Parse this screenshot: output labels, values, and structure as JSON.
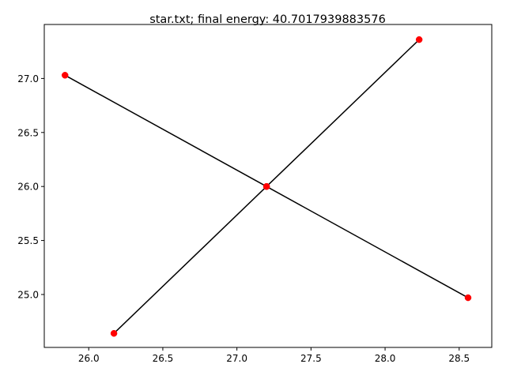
{
  "chart_data": {
    "type": "line",
    "title": "star.txt; final energy: 40.7017939883576",
    "xlabel": "",
    "ylabel": "",
    "xlim": [
      25.7,
      28.72
    ],
    "ylim": [
      24.51,
      27.5
    ],
    "grid": false,
    "legend": "none",
    "xticks": [
      {
        "value": 26.0,
        "label": "26.0"
      },
      {
        "value": 26.5,
        "label": "26.5"
      },
      {
        "value": 27.0,
        "label": "27.0"
      },
      {
        "value": 27.5,
        "label": "27.5"
      },
      {
        "value": 28.0,
        "label": "28.0"
      },
      {
        "value": 28.5,
        "label": "28.5"
      }
    ],
    "yticks": [
      {
        "value": 25.0,
        "label": "25.0"
      },
      {
        "value": 25.5,
        "label": "25.5"
      },
      {
        "value": 26.0,
        "label": "26.0"
      },
      {
        "value": 26.5,
        "label": "26.5"
      },
      {
        "value": 27.0,
        "label": "27.0"
      }
    ],
    "line_color": "#000000",
    "marker_color": "#ff0000",
    "segments": [
      {
        "points": [
          {
            "x": 25.84,
            "y": 27.03
          },
          {
            "x": 27.2,
            "y": 26.0
          },
          {
            "x": 28.56,
            "y": 24.97
          }
        ]
      },
      {
        "points": [
          {
            "x": 26.17,
            "y": 24.64
          },
          {
            "x": 27.2,
            "y": 26.0
          },
          {
            "x": 28.23,
            "y": 27.36
          }
        ]
      }
    ]
  }
}
